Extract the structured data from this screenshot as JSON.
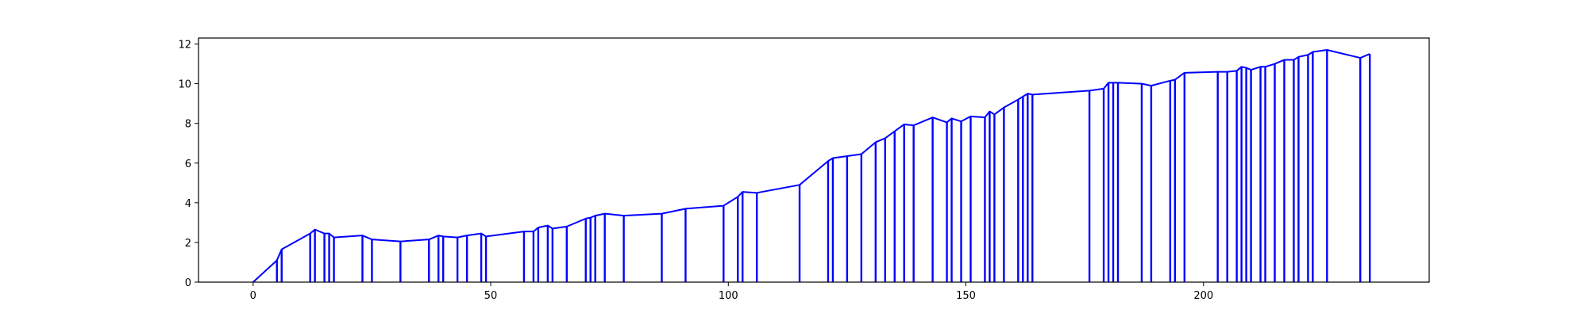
{
  "chart_data": {
    "type": "line",
    "title": "",
    "xlabel": "",
    "ylabel": "",
    "xlim": [
      -11.5,
      247.5
    ],
    "ylim": [
      0,
      12.3
    ],
    "xticks": [
      0,
      50,
      100,
      150,
      200
    ],
    "yticks": [
      0,
      2,
      4,
      6,
      8,
      10,
      12
    ],
    "grid": false,
    "legend": "none",
    "color": "#0000ff",
    "series": [
      {
        "x": [
          0,
          5,
          6,
          12,
          13,
          15,
          16,
          17,
          23,
          25,
          31,
          37,
          39,
          40,
          43,
          45,
          48,
          49,
          57,
          59,
          60,
          62,
          63,
          66,
          70,
          71,
          72,
          74,
          78,
          86,
          91,
          99,
          102,
          103,
          106,
          115,
          121,
          122,
          125,
          128,
          131,
          133,
          135,
          137,
          139,
          143,
          146,
          147,
          149,
          151,
          154,
          155,
          156,
          158,
          161,
          162,
          163,
          164,
          176,
          179,
          180,
          181,
          182,
          187,
          189,
          193,
          194,
          196,
          203,
          205,
          207,
          208,
          209,
          210,
          212,
          213,
          215,
          217,
          219,
          220,
          222,
          223,
          226,
          233,
          235
        ],
        "y": [
          0,
          1.1,
          1.65,
          2.45,
          2.65,
          2.45,
          2.45,
          2.25,
          2.35,
          2.15,
          2.05,
          2.15,
          2.35,
          2.3,
          2.25,
          2.35,
          2.45,
          2.3,
          2.55,
          2.55,
          2.75,
          2.85,
          2.7,
          2.8,
          3.2,
          3.25,
          3.35,
          3.45,
          3.35,
          3.45,
          3.7,
          3.85,
          4.3,
          4.55,
          4.5,
          4.9,
          6.1,
          6.25,
          6.35,
          6.45,
          7.05,
          7.25,
          7.6,
          7.95,
          7.9,
          8.3,
          8.05,
          8.25,
          8.1,
          8.35,
          8.3,
          8.6,
          8.45,
          8.8,
          9.2,
          9.35,
          9.5,
          9.45,
          9.65,
          9.75,
          10.05,
          10.05,
          10.05,
          10.0,
          9.9,
          10.15,
          10.2,
          10.55,
          10.6,
          10.6,
          10.65,
          10.85,
          10.8,
          10.7,
          10.85,
          10.85,
          11.0,
          11.2,
          11.2,
          11.35,
          11.45,
          11.6,
          11.7,
          11.3,
          11.5
        ]
      }
    ]
  }
}
